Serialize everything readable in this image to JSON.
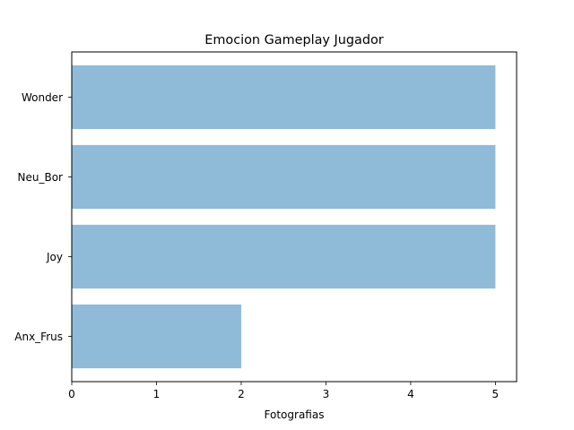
{
  "chart_data": {
    "type": "bar",
    "orientation": "horizontal",
    "title": "Emocion Gameplay Jugador",
    "xlabel": "Fotografias",
    "ylabel": "",
    "categories": [
      "Anx_Frus",
      "Joy",
      "Neu_Bor",
      "Wonder"
    ],
    "values": [
      2,
      5,
      5,
      5
    ],
    "xlim": [
      0,
      5.25
    ],
    "xticks": [
      0,
      1,
      2,
      3,
      4,
      5
    ],
    "bar_color": "#8fbbd9",
    "grid": false,
    "legend": "none"
  }
}
